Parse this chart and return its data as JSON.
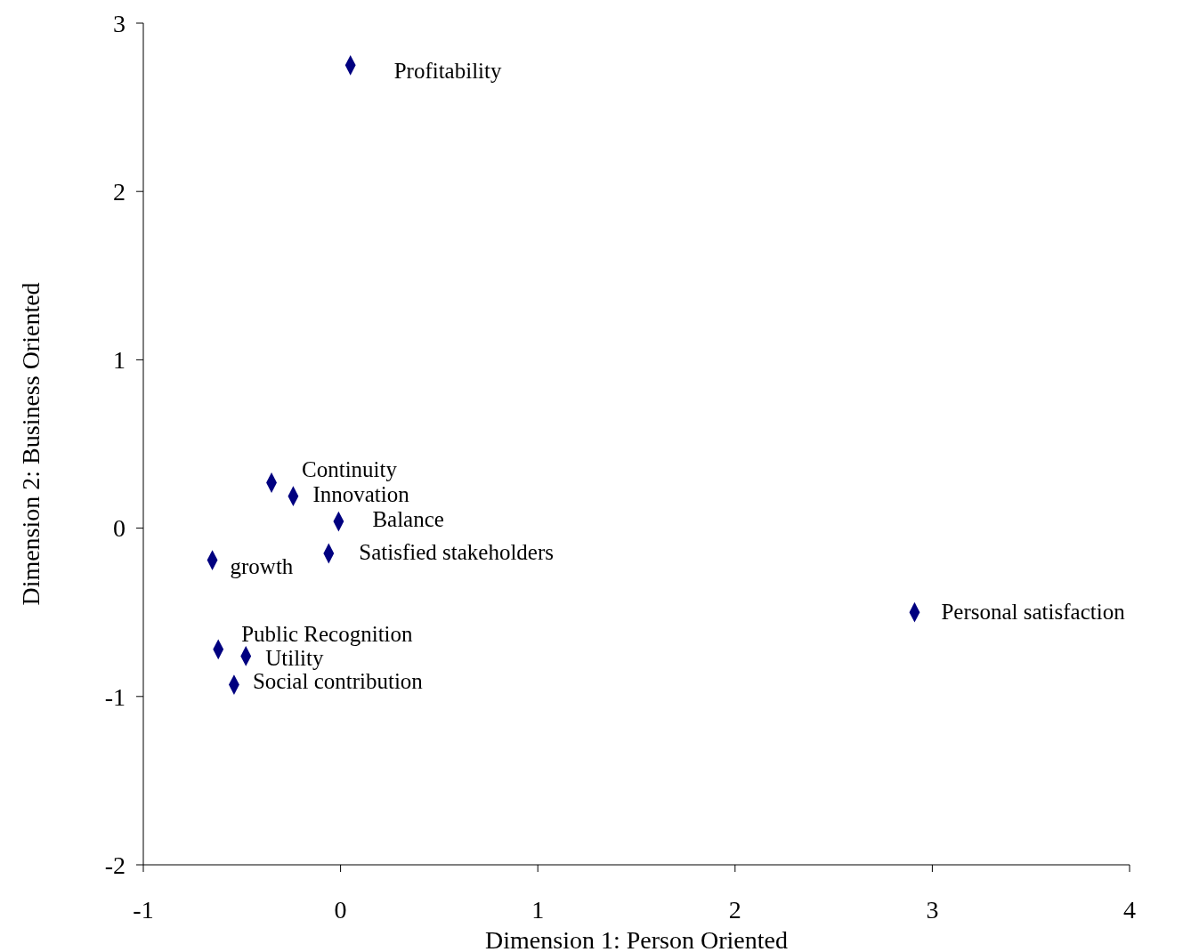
{
  "chart_data": {
    "type": "scatter",
    "xlabel": "Dimension 1: Person Oriented",
    "ylabel": "Dimension 2: Business Oriented",
    "xlim": [
      -1,
      4
    ],
    "xticks": [
      -1,
      0,
      1,
      2,
      3,
      4
    ],
    "ylim": [
      -2,
      3
    ],
    "yticks": [
      -2,
      -1,
      0,
      1,
      2,
      3
    ],
    "grid": false,
    "marker": "diamond",
    "series": [
      {
        "color": "#000080",
        "x": [
          0.05,
          -0.35,
          -0.24,
          -0.01,
          -0.06,
          -0.65,
          -0.62,
          -0.48,
          -0.54,
          2.91
        ],
        "values": [
          2.75,
          0.27,
          0.19,
          0.04,
          -0.15,
          -0.19,
          -0.72,
          -0.76,
          -0.93,
          -0.5
        ]
      }
    ],
    "annotations": [
      {
        "text": "Profitability",
        "x": 0.05,
        "y": 2.75
      },
      {
        "text": "Continuity",
        "x": -0.35,
        "y": 0.27
      },
      {
        "text": "Innovation",
        "x": -0.24,
        "y": 0.19
      },
      {
        "text": "Balance",
        "x": -0.01,
        "y": 0.04
      },
      {
        "text": "Satisfied stakeholders",
        "x": -0.06,
        "y": -0.15
      },
      {
        "text": "growth",
        "x": -0.65,
        "y": -0.19
      },
      {
        "text": "Public Recognition",
        "x": -0.62,
        "y": -0.72
      },
      {
        "text": "Utility",
        "x": -0.48,
        "y": -0.76
      },
      {
        "text": "Social contribution",
        "x": -0.54,
        "y": -0.93
      },
      {
        "text": "Personal satisfaction",
        "x": 2.91,
        "y": -0.5
      }
    ]
  }
}
